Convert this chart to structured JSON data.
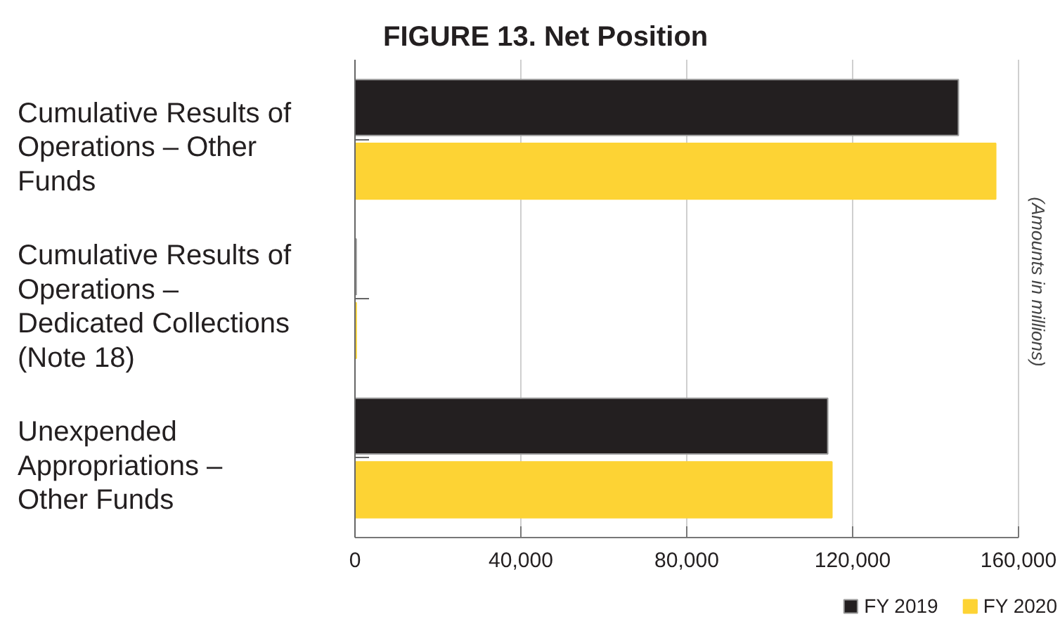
{
  "chart_data": {
    "type": "bar",
    "orientation": "horizontal",
    "title": "FIGURE 13. Net Position",
    "categories": [
      "Cumulative Results of Operations – Other Funds",
      "Cumulative Results of Operations – Dedicated Collections (Note 18)",
      "Unexpended Appropriations – Other Funds"
    ],
    "series": [
      {
        "name": "FY 2019",
        "color": "#231f20",
        "values": [
          145500,
          300,
          114000
        ]
      },
      {
        "name": "FY 2020",
        "color": "#fdd334",
        "values": [
          154500,
          300,
          115000
        ]
      }
    ],
    "xlim": [
      0,
      160000
    ],
    "xticks": [
      0,
      {
        "value": 40000,
        "label": "40,000"
      },
      {
        "value": 80000,
        "label": "80,000"
      },
      {
        "value": 120000,
        "label": "120,000"
      },
      {
        "value": 160000,
        "label": "160,000"
      }
    ],
    "grid": "x",
    "legend": "bottom right",
    "annotations": [
      "(Amounts in millions)"
    ]
  }
}
